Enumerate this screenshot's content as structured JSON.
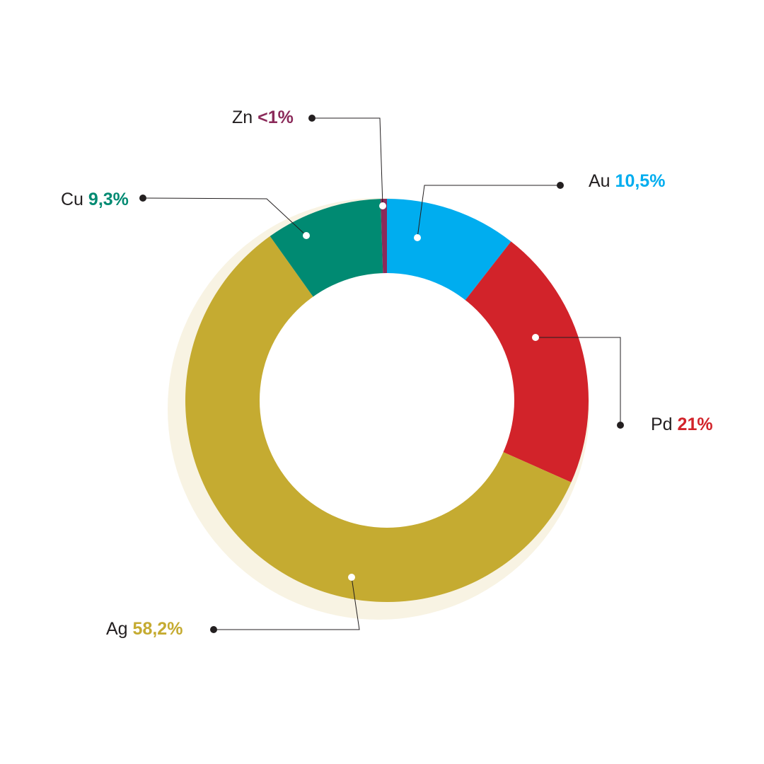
{
  "chart_data": {
    "type": "pie",
    "donut": true,
    "categories": [
      "Au",
      "Pd",
      "Ag",
      "Cu",
      "Zn"
    ],
    "values": [
      10.5,
      21,
      58.2,
      9.3,
      0.5
    ],
    "value_labels": [
      "10,5%",
      "21%",
      "58,2%",
      "9,3%",
      "<1%"
    ],
    "colors": [
      "#00adef",
      "#d2232a",
      "#c5ab31",
      "#008a72",
      "#8b2a5a"
    ]
  }
}
